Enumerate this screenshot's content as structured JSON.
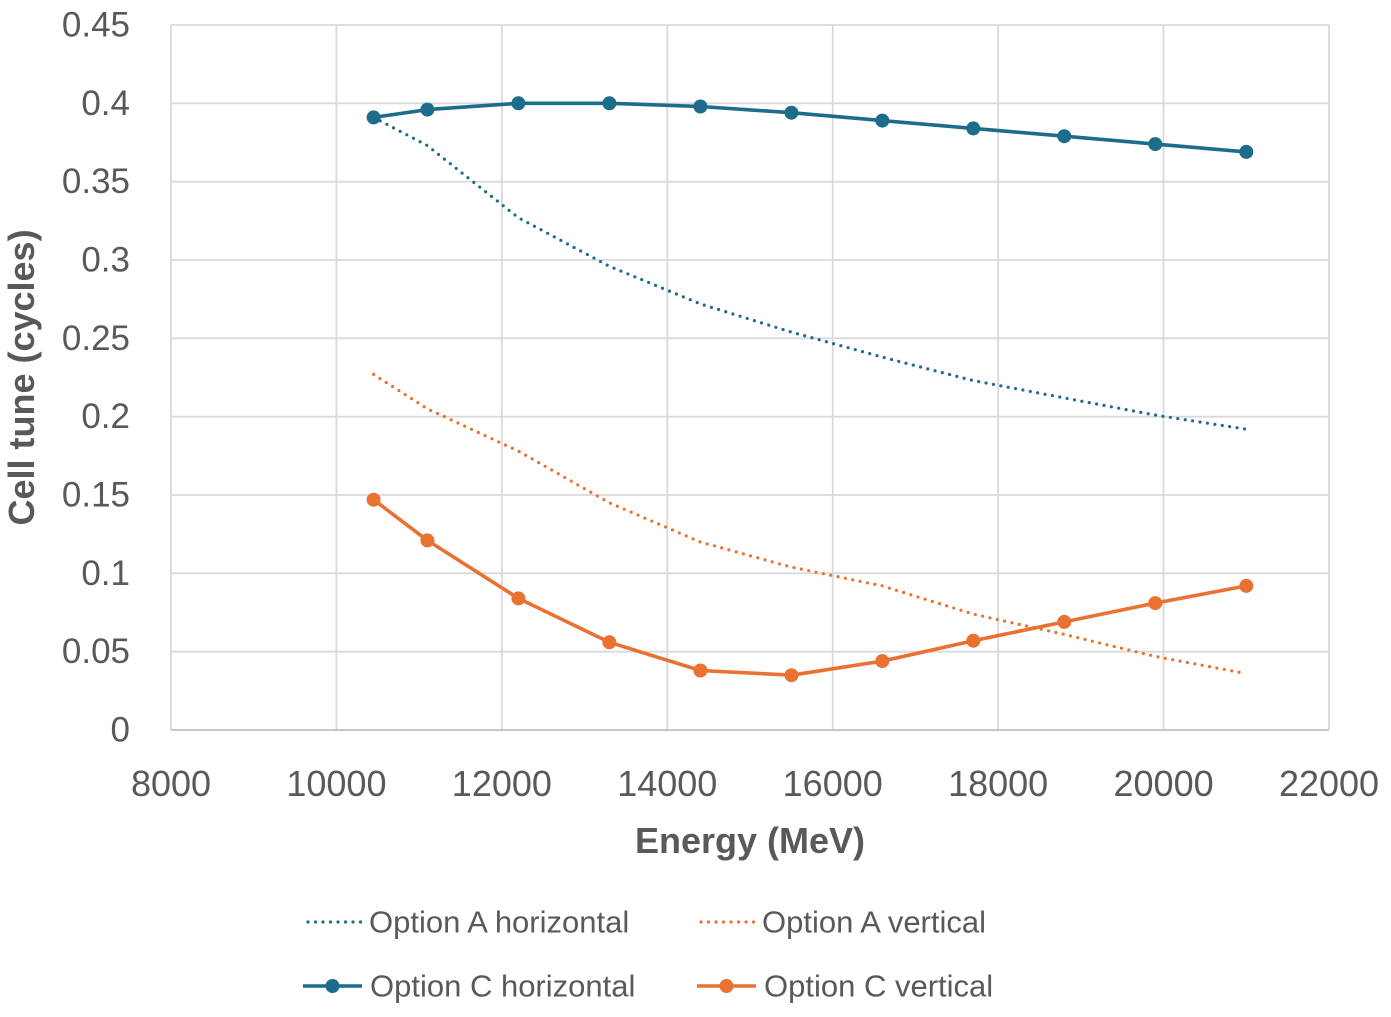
{
  "chart_data": {
    "type": "line",
    "title": "",
    "xlabel": "Energy (MeV)",
    "ylabel": "Cell tune (cycles)",
    "xlim": [
      8000,
      22000
    ],
    "ylim": [
      0,
      0.45
    ],
    "x_ticks": [
      8000,
      10000,
      12000,
      14000,
      16000,
      18000,
      20000,
      22000
    ],
    "x_tick_labels": [
      "8000",
      "10000",
      "12000",
      "14000",
      "16000",
      "18000",
      "20000",
      "22000"
    ],
    "y_ticks": [
      0,
      0.05,
      0.1,
      0.15,
      0.2,
      0.25,
      0.3,
      0.35,
      0.4,
      0.45
    ],
    "y_tick_labels": [
      "0",
      "0.05",
      "0.1",
      "0.15",
      "0.2",
      "0.25",
      "0.3",
      "0.35",
      "0.4",
      "0.45"
    ],
    "grid": true,
    "legend_position": "bottom",
    "background": "#ffffff",
    "text_color": "#595959",
    "grid_color": "#d9d9d9",
    "axis_color": "#bfbfbf",
    "x": [
      10450,
      11100,
      12200,
      13300,
      14400,
      15500,
      16600,
      17700,
      18800,
      19900,
      21000
    ],
    "series": [
      {
        "name": "Option A horizontal",
        "style": "dotted",
        "markers": false,
        "color": "#1e6c8c",
        "values": [
          0.391,
          0.373,
          0.327,
          0.296,
          0.272,
          0.254,
          0.238,
          0.223,
          0.212,
          0.201,
          0.192
        ]
      },
      {
        "name": "Option A vertical",
        "style": "dotted",
        "markers": false,
        "color": "#e97132",
        "values": [
          0.227,
          0.205,
          0.178,
          0.145,
          0.12,
          0.104,
          0.092,
          0.074,
          0.061,
          0.047,
          0.036
        ]
      },
      {
        "name": "Option C horizontal",
        "style": "solid",
        "markers": true,
        "color": "#1e6c8c",
        "values": [
          0.391,
          0.396,
          0.4,
          0.4,
          0.398,
          0.394,
          0.389,
          0.384,
          0.379,
          0.374,
          0.369
        ]
      },
      {
        "name": "Option C vertical",
        "style": "solid",
        "markers": true,
        "color": "#e97132",
        "values": [
          0.147,
          0.121,
          0.084,
          0.056,
          0.038,
          0.035,
          0.044,
          0.057,
          0.069,
          0.081,
          0.092
        ]
      }
    ]
  }
}
